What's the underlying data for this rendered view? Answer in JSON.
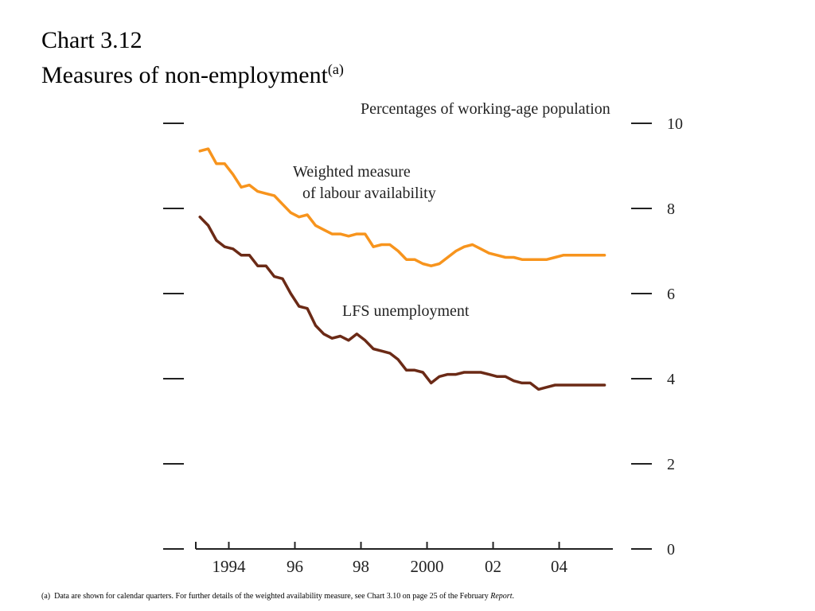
{
  "header": {
    "chart_number": "Chart 3.12",
    "title": "Measures of non-employment",
    "title_note_marker": "(a)"
  },
  "footnote": {
    "marker": "(a)",
    "text": "Data are shown for calendar quarters.  For further details of the weighted availability measure, see Chart 3.10 on page 25 of the February ",
    "italic": "Report",
    "end": "."
  },
  "chart_data": {
    "type": "line",
    "units_label": "Percentages of working-age population",
    "ylim": [
      0,
      10
    ],
    "y_ticks": [
      0,
      2,
      4,
      6,
      8,
      10
    ],
    "x_range": [
      1993.0,
      2005.625
    ],
    "x_ticks": [
      {
        "label": "1994",
        "value": 1994
      },
      {
        "label": "96",
        "value": 1996
      },
      {
        "label": "98",
        "value": 1998
      },
      {
        "label": "2000",
        "value": 2000
      },
      {
        "label": "02",
        "value": 2002
      },
      {
        "label": "04",
        "value": 2004
      }
    ],
    "grid": false,
    "series": [
      {
        "name": "Weighted measure of labour availability",
        "label_lines": [
          "Weighted measure",
          "of labour availability"
        ],
        "color": "#F7941D",
        "x": [
          1993.125,
          1993.375,
          1993.625,
          1993.875,
          1994.125,
          1994.375,
          1994.625,
          1994.875,
          1995.125,
          1995.375,
          1995.625,
          1995.875,
          1996.125,
          1996.375,
          1996.625,
          1996.875,
          1997.125,
          1997.375,
          1997.625,
          1997.875,
          1998.125,
          1998.375,
          1998.625,
          1998.875,
          1999.125,
          1999.375,
          1999.625,
          1999.875,
          2000.125,
          2000.375,
          2000.625,
          2000.875,
          2001.125,
          2001.375,
          2001.625,
          2001.875,
          2002.125,
          2002.375,
          2002.625,
          2002.875,
          2003.125,
          2003.375,
          2003.625,
          2003.875,
          2004.125,
          2004.375,
          2004.625,
          2004.875,
          2005.125,
          2005.375
        ],
        "values": [
          9.35,
          9.4,
          9.05,
          9.05,
          8.8,
          8.5,
          8.55,
          8.4,
          8.35,
          8.3,
          8.1,
          7.9,
          7.8,
          7.85,
          7.6,
          7.5,
          7.4,
          7.4,
          7.35,
          7.4,
          7.4,
          7.1,
          7.15,
          7.15,
          7.0,
          6.8,
          6.8,
          6.7,
          6.65,
          6.7,
          6.85,
          7.0,
          7.1,
          7.15,
          7.05,
          6.95,
          6.9,
          6.85,
          6.85,
          6.8,
          6.8,
          6.8,
          6.8,
          6.85,
          6.9,
          6.9,
          6.9,
          6.9,
          6.9,
          6.9
        ]
      },
      {
        "name": "LFS unemployment",
        "label_lines": [
          "LFS unemployment"
        ],
        "color": "#6B2A16",
        "x": [
          1993.125,
          1993.375,
          1993.625,
          1993.875,
          1994.125,
          1994.375,
          1994.625,
          1994.875,
          1995.125,
          1995.375,
          1995.625,
          1995.875,
          1996.125,
          1996.375,
          1996.625,
          1996.875,
          1997.125,
          1997.375,
          1997.625,
          1997.875,
          1998.125,
          1998.375,
          1998.625,
          1998.875,
          1999.125,
          1999.375,
          1999.625,
          1999.875,
          2000.125,
          2000.375,
          2000.625,
          2000.875,
          2001.125,
          2001.375,
          2001.625,
          2001.875,
          2002.125,
          2002.375,
          2002.625,
          2002.875,
          2003.125,
          2003.375,
          2003.625,
          2003.875,
          2004.125,
          2004.375,
          2004.625,
          2004.875,
          2005.125,
          2005.375
        ],
        "values": [
          7.8,
          7.6,
          7.25,
          7.1,
          7.05,
          6.9,
          6.9,
          6.65,
          6.65,
          6.4,
          6.35,
          6.0,
          5.7,
          5.65,
          5.25,
          5.05,
          4.95,
          5.0,
          4.9,
          5.05,
          4.9,
          4.7,
          4.65,
          4.6,
          4.45,
          4.2,
          4.2,
          4.15,
          3.9,
          4.05,
          4.1,
          4.1,
          4.15,
          4.15,
          4.15,
          4.1,
          4.05,
          4.05,
          3.95,
          3.9,
          3.9,
          3.75,
          3.8,
          3.85,
          3.85,
          3.85,
          3.85,
          3.85,
          3.85,
          3.85
        ]
      }
    ]
  }
}
